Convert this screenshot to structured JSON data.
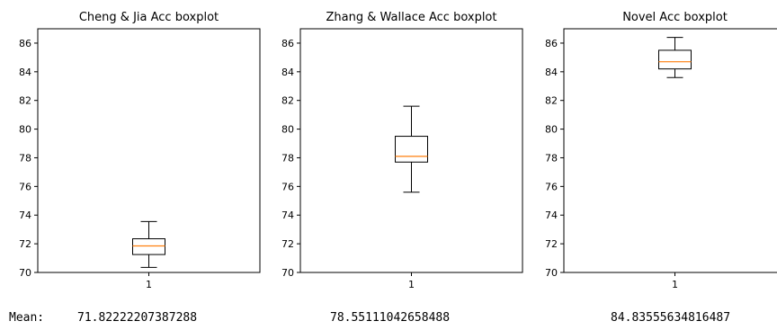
{
  "chart_data": [
    {
      "type": "boxplot",
      "title": "Cheng & Jia Acc boxplot",
      "categories": [
        "1"
      ],
      "ylim": [
        70,
        87
      ],
      "yticks": [
        70,
        72,
        74,
        76,
        78,
        80,
        82,
        84,
        86
      ],
      "box": {
        "whisker_low": 70.35,
        "q1": 71.25,
        "median": 71.85,
        "q3": 72.35,
        "whisker_high": 73.55
      }
    },
    {
      "type": "boxplot",
      "title": "Zhang & Wallace Acc boxplot",
      "categories": [
        "1"
      ],
      "ylim": [
        70,
        87
      ],
      "yticks": [
        70,
        72,
        74,
        76,
        78,
        80,
        82,
        84,
        86
      ],
      "box": {
        "whisker_low": 75.6,
        "q1": 77.7,
        "median": 78.1,
        "q3": 79.5,
        "whisker_high": 81.6
      }
    },
    {
      "type": "boxplot",
      "title": "Novel Acc boxplot",
      "categories": [
        "1"
      ],
      "ylim": [
        70,
        87
      ],
      "yticks": [
        70,
        72,
        74,
        76,
        78,
        80,
        82,
        84,
        86
      ],
      "box": {
        "whisker_low": 83.6,
        "q1": 84.2,
        "median": 84.7,
        "q3": 85.5,
        "whisker_high": 86.4
      }
    }
  ],
  "output": {
    "mean_label": "Mean:",
    "means": [
      "71.82222207387288",
      "78.55111042658488",
      "84.83555634816487"
    ]
  },
  "colors": {
    "median": "#ff7f0e",
    "box": "#000000"
  }
}
